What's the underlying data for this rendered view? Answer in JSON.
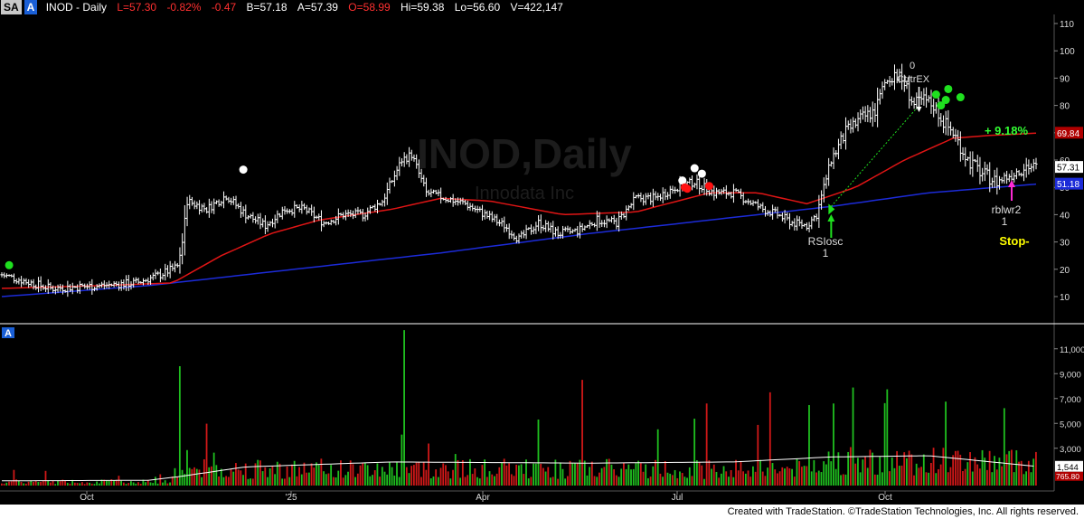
{
  "header": {
    "tag1": "SA",
    "tag2": "A",
    "symbol": "INOD - Daily",
    "last": "L=57.30",
    "change": "-0.82%",
    "change_abs": "-0.47",
    "bid": "B=57.18",
    "ask": "A=57.39",
    "open": "O=58.99",
    "high": "Hi=59.38",
    "low": "Lo=56.60",
    "volume": "V=422,147"
  },
  "watermark": {
    "title": "INOD,Daily",
    "subtitle": "Innodata Inc"
  },
  "price_axis": {
    "ticks": [
      "110",
      "100",
      "90",
      "80",
      "70",
      "60",
      "50",
      "40",
      "30",
      "20",
      "10"
    ],
    "last_price_label": "57.31",
    "ma_red_label": "69.84",
    "ma_blue_label": "51.18"
  },
  "volume_axis": {
    "ticks": [
      "11,000",
      "9,000",
      "7,000",
      "5,000",
      "3,000"
    ],
    "vol_label": "1,544",
    "vol_red_label": "765.80"
  },
  "time_axis": {
    "labels": [
      "Oct",
      "'25",
      "Apr",
      "Jul",
      "Oct"
    ]
  },
  "annotations": {
    "rsiosc": "RSIosc",
    "rsiosc_count": "1",
    "rblwr2": "rblwr2",
    "rblwr2_count": "1",
    "stop": "Stop-",
    "pct_gain": "+ 9.18%",
    "zero_label": "0",
    "exit_label": "CtrtrEX",
    "vol_panel_tag": "A"
  },
  "colors": {
    "background": "#000000",
    "bar": "#ffffff",
    "ma_red": "#e01515",
    "ma_blue": "#1c2bd8",
    "vol_up": "#1fbf1f",
    "vol_down": "#d01818",
    "signal_green": "#1fe01f",
    "signal_red": "#ff1010",
    "signal_pink": "#ff2bd6",
    "stop_yellow": "#ffff00",
    "pct_green": "#33ff33"
  },
  "footer": {
    "credit": "Created with TradeStation. ©TradeStation Technologies, Inc. All rights reserved."
  },
  "chart_data": {
    "type": "candlestick",
    "title": "INOD,Daily",
    "subtitle": "Innodata Inc",
    "ylim": [
      0,
      115
    ],
    "x_labels": [
      "Oct",
      "'25",
      "Apr",
      "Jul",
      "Oct"
    ],
    "price_knots": [
      {
        "i": 0,
        "v": 18
      },
      {
        "i": 8,
        "v": 16
      },
      {
        "i": 20,
        "v": 13
      },
      {
        "i": 40,
        "v": 14
      },
      {
        "i": 55,
        "v": 15
      },
      {
        "i": 65,
        "v": 18
      },
      {
        "i": 72,
        "v": 21
      },
      {
        "i": 74,
        "v": 30
      },
      {
        "i": 76,
        "v": 45
      },
      {
        "i": 84,
        "v": 42
      },
      {
        "i": 92,
        "v": 47
      },
      {
        "i": 100,
        "v": 40
      },
      {
        "i": 108,
        "v": 36
      },
      {
        "i": 116,
        "v": 42
      },
      {
        "i": 124,
        "v": 42
      },
      {
        "i": 132,
        "v": 37
      },
      {
        "i": 140,
        "v": 40
      },
      {
        "i": 148,
        "v": 40
      },
      {
        "i": 156,
        "v": 45
      },
      {
        "i": 164,
        "v": 60
      },
      {
        "i": 168,
        "v": 62
      },
      {
        "i": 174,
        "v": 48
      },
      {
        "i": 182,
        "v": 46
      },
      {
        "i": 190,
        "v": 44
      },
      {
        "i": 198,
        "v": 40
      },
      {
        "i": 206,
        "v": 36
      },
      {
        "i": 212,
        "v": 31
      },
      {
        "i": 220,
        "v": 37
      },
      {
        "i": 228,
        "v": 33
      },
      {
        "i": 236,
        "v": 34
      },
      {
        "i": 244,
        "v": 38
      },
      {
        "i": 252,
        "v": 37
      },
      {
        "i": 260,
        "v": 46
      },
      {
        "i": 268,
        "v": 46
      },
      {
        "i": 276,
        "v": 50
      },
      {
        "i": 284,
        "v": 52
      },
      {
        "i": 292,
        "v": 48
      },
      {
        "i": 300,
        "v": 48
      },
      {
        "i": 306,
        "v": 45
      },
      {
        "i": 312,
        "v": 42
      },
      {
        "i": 318,
        "v": 40
      },
      {
        "i": 324,
        "v": 37
      },
      {
        "i": 330,
        "v": 36
      },
      {
        "i": 334,
        "v": 40
      },
      {
        "i": 340,
        "v": 60
      },
      {
        "i": 346,
        "v": 70
      },
      {
        "i": 352,
        "v": 75
      },
      {
        "i": 358,
        "v": 78
      },
      {
        "i": 362,
        "v": 88
      },
      {
        "i": 366,
        "v": 92
      },
      {
        "i": 370,
        "v": 88
      },
      {
        "i": 374,
        "v": 80
      },
      {
        "i": 378,
        "v": 82
      },
      {
        "i": 382,
        "v": 80
      },
      {
        "i": 386,
        "v": 74
      },
      {
        "i": 390,
        "v": 70
      },
      {
        "i": 396,
        "v": 60
      },
      {
        "i": 402,
        "v": 55
      },
      {
        "i": 408,
        "v": 52
      },
      {
        "i": 414,
        "v": 55
      },
      {
        "i": 420,
        "v": 58
      },
      {
        "i": 424,
        "v": 57
      }
    ],
    "ma_red": [
      {
        "i": 0,
        "v": 13
      },
      {
        "i": 40,
        "v": 14
      },
      {
        "i": 70,
        "v": 15
      },
      {
        "i": 90,
        "v": 25
      },
      {
        "i": 110,
        "v": 33
      },
      {
        "i": 130,
        "v": 38
      },
      {
        "i": 160,
        "v": 42
      },
      {
        "i": 180,
        "v": 46
      },
      {
        "i": 200,
        "v": 45
      },
      {
        "i": 230,
        "v": 40
      },
      {
        "i": 260,
        "v": 41
      },
      {
        "i": 290,
        "v": 48
      },
      {
        "i": 310,
        "v": 48
      },
      {
        "i": 330,
        "v": 44
      },
      {
        "i": 350,
        "v": 50
      },
      {
        "i": 370,
        "v": 60
      },
      {
        "i": 390,
        "v": 68
      },
      {
        "i": 405,
        "v": 69
      },
      {
        "i": 424,
        "v": 69.84
      }
    ],
    "ma_blue": [
      {
        "i": 0,
        "v": 10
      },
      {
        "i": 60,
        "v": 14
      },
      {
        "i": 120,
        "v": 20
      },
      {
        "i": 180,
        "v": 26
      },
      {
        "i": 240,
        "v": 33
      },
      {
        "i": 300,
        "v": 39
      },
      {
        "i": 340,
        "v": 43
      },
      {
        "i": 380,
        "v": 48
      },
      {
        "i": 424,
        "v": 51.18
      }
    ],
    "volume_ylim": [
      0,
      12000
    ],
    "volume_avg_last": 1544
  }
}
